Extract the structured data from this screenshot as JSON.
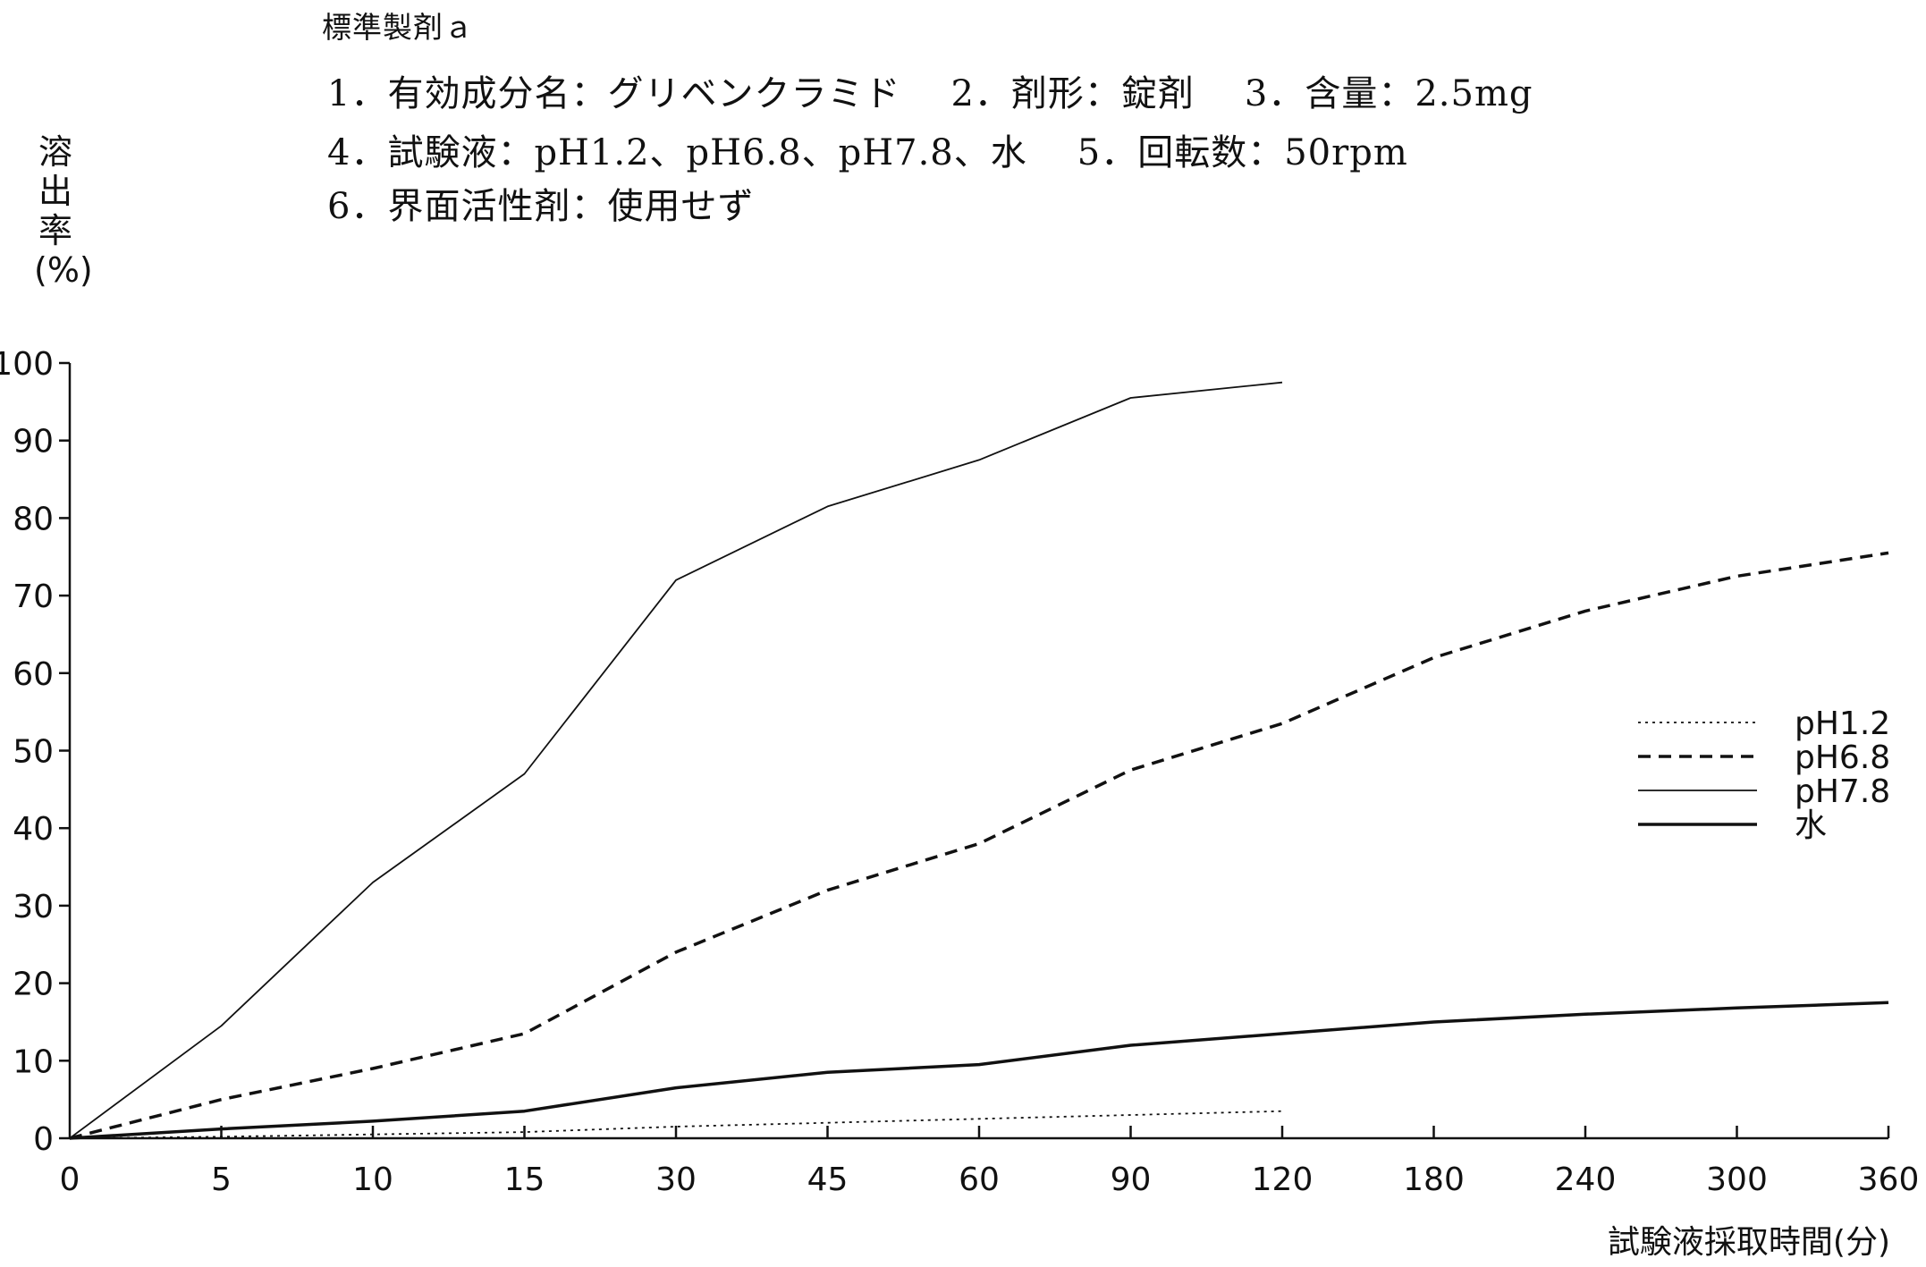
{
  "header": {
    "title": "標準製剤ａ",
    "line1": [
      "1．有効成分名：グリベンクラミド",
      "2．剤形：錠剤",
      "3．含量：2.5mg"
    ],
    "line2": [
      "4．試験液：pH1.2、pH6.8、pH7.8、水",
      "5．回転数：50rpm"
    ],
    "line3": [
      "6．界面活性剤：使用せず"
    ]
  },
  "chart_data": {
    "type": "line",
    "title": "",
    "ylabel": "溶出率(%)",
    "xlabel": "試験液採取時間(分)",
    "ylim": [
      0,
      100
    ],
    "yticks": [
      0,
      10,
      20,
      30,
      40,
      50,
      60,
      70,
      80,
      90,
      100
    ],
    "categories": [
      "0",
      "5",
      "10",
      "15",
      "30",
      "45",
      "60",
      "90",
      "120",
      "180",
      "240",
      "300",
      "360"
    ],
    "grid": false,
    "legend_position": "right",
    "series": [
      {
        "name": "pH1.2",
        "style": "dotted",
        "values": [
          0,
          0.2,
          0.5,
          0.8,
          1.5,
          2.0,
          2.5,
          3.0,
          3.5,
          null,
          null,
          null,
          null
        ]
      },
      {
        "name": "pH6.8",
        "style": "dashed",
        "values": [
          0,
          5,
          9,
          13.5,
          24,
          32,
          38,
          47.5,
          53.5,
          62,
          68,
          72.5,
          75.5
        ]
      },
      {
        "name": "pH7.8",
        "style": "thin-solid",
        "values": [
          0,
          14.5,
          33,
          47,
          72,
          81.5,
          87.5,
          95.5,
          97.5,
          null,
          null,
          null,
          null
        ]
      },
      {
        "name": "水",
        "style": "thick-solid",
        "values": [
          0,
          1.2,
          2.2,
          3.5,
          6.5,
          8.5,
          9.5,
          12,
          13.5,
          15,
          16,
          16.8,
          17.5
        ]
      }
    ]
  }
}
